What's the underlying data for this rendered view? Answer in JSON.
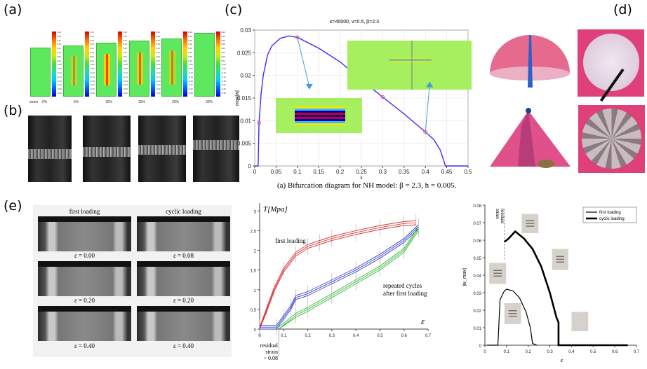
{
  "panels": {
    "a": {
      "label": "(a)",
      "strain_label": "strain",
      "strains": [
        "0%",
        "5%",
        "10%",
        "15%",
        "20%",
        "30%"
      ],
      "colorbar_ticks": [
        "0.30",
        "0.26",
        "0.22",
        "0.18",
        "0.14",
        "0.10",
        "0.06",
        "0.02",
        "-0.02",
        "-0.06",
        "-0.10",
        "-0.14",
        "-0.18",
        "-0.22",
        "-0.26",
        "-0.30"
      ]
    },
    "b": {
      "label": "(b)"
    },
    "c": {
      "label": "(c)",
      "title": "κ=40000, ν=0.5, β=2.3",
      "ylabel": "max|w|",
      "xlabel": "ε",
      "caption": "(a) Bifurcation diagram for NH model: β = 2.3, h = 0.005.",
      "curve_color": "#3a2bff",
      "marker_color": "#ff6060",
      "arrow_color": "#4a9ad8"
    },
    "d": {
      "label": "(d)"
    },
    "e": {
      "label": "(e)",
      "photo_grid": {
        "col_headers": [
          "first loading",
          "cyclic loading"
        ],
        "rows": [
          [
            "ε = 0.00",
            "ε = 0.08"
          ],
          [
            "ε = 0.20",
            "ε = 0.20"
          ],
          [
            "ε = 0.40",
            "ε = 0.40"
          ]
        ]
      },
      "stress_plot": {
        "ylabel": "T[Mpa]",
        "xlabel": "ε",
        "annotations": [
          "first loading",
          "repeated cycles",
          "after first loading"
        ],
        "residual_note": [
          "residual",
          "strain",
          "~ 0.08"
        ]
      },
      "amplitude_plot": {
        "ylabel": "|w_max|",
        "xlabel": "ε",
        "residual_note": [
          "residual",
          "strain"
        ]
      }
    }
  },
  "chart_data": [
    {
      "type": "line",
      "title": "κ=40000, ν=0.5, β=2.3",
      "xlabel": "ε",
      "ylabel": "max|w|",
      "xlim": [
        0,
        0.5
      ],
      "ylim": [
        0,
        0.03
      ],
      "xticks": [
        "0",
        "0.05",
        "0.1",
        "0.15",
        "0.2",
        "0.25",
        "0.3",
        "0.35",
        "0.4",
        "0.45",
        "0.5"
      ],
      "yticks": [
        "0",
        "0.005",
        "0.01",
        "0.015",
        "0.02",
        "0.025",
        "0.03"
      ],
      "grid": true,
      "series": [
        {
          "x": [
            0,
            0.008,
            0.01,
            0.015,
            0.02,
            0.03,
            0.04,
            0.06,
            0.08,
            0.1,
            0.15,
            0.2,
            0.25,
            0.3,
            0.35,
            0.4,
            0.42,
            0.435,
            0.447,
            0.5
          ],
          "y": [
            0,
            0,
            0.0095,
            0.016,
            0.02,
            0.0245,
            0.0265,
            0.0282,
            0.0287,
            0.0284,
            0.026,
            0.023,
            0.019,
            0.0152,
            0.0115,
            0.0075,
            0.0058,
            0.0035,
            0,
            0
          ]
        }
      ],
      "markers": {
        "x": [
          0.01,
          0.1,
          0.3,
          0.4
        ],
        "y": [
          0.0095,
          0.0284,
          0.0152,
          0.0075
        ]
      }
    },
    {
      "type": "line",
      "xlabel": "ε",
      "ylabel": "T[Mpa]",
      "xlim": [
        0,
        0.7
      ],
      "ylim": [
        0,
        3.2
      ],
      "xticks": [
        "0",
        "0.1",
        "0.2",
        "0.3",
        "0.4",
        "0.5",
        "0.6",
        "0.7"
      ],
      "yticks": [
        "0",
        "0.5",
        "1",
        "1.5",
        "2",
        "2.5",
        "3"
      ],
      "series": [
        {
          "color": "#d42020",
          "x": [
            0,
            0.03,
            0.06,
            0.1,
            0.15,
            0.2,
            0.25,
            0.3,
            0.4,
            0.5,
            0.6,
            0.65
          ],
          "y": [
            0,
            0.5,
            1.0,
            1.5,
            1.9,
            2.1,
            2.2,
            2.3,
            2.45,
            2.58,
            2.68,
            2.7
          ]
        },
        {
          "color": "#1f2ad0",
          "x": [
            0,
            0.07,
            0.1,
            0.13,
            0.15,
            0.2,
            0.3,
            0.4,
            0.5,
            0.6,
            0.66
          ],
          "y": [
            0.05,
            0.05,
            0.3,
            0.55,
            0.8,
            0.9,
            1.2,
            1.5,
            1.85,
            2.25,
            2.6
          ]
        },
        {
          "color": "#20b020",
          "x": [
            0.08,
            0.15,
            0.2,
            0.3,
            0.4,
            0.5,
            0.6,
            0.66
          ],
          "y": [
            0,
            0.35,
            0.5,
            0.85,
            1.2,
            1.55,
            2.0,
            2.55
          ]
        }
      ]
    },
    {
      "type": "line",
      "xlabel": "ε",
      "ylabel": "|w_max|",
      "xlim": [
        0,
        0.7
      ],
      "ylim": [
        0,
        0.08
      ],
      "xticks": [
        "0",
        "0.1",
        "0.2",
        "0.3",
        "0.4",
        "0.5",
        "0.6",
        "0.7"
      ],
      "yticks": [
        "0",
        "0.01",
        "0.02",
        "0.03",
        "0.04",
        "0.05",
        "0.06",
        "0.07",
        "0.08"
      ],
      "legend": "top-right",
      "series": [
        {
          "name": "first loading",
          "x": [
            0.01,
            0.06,
            0.07,
            0.09,
            0.1,
            0.13,
            0.16,
            0.19,
            0.21,
            0.22,
            0.24
          ],
          "y": [
            0,
            0,
            0.026,
            0.031,
            0.032,
            0.031,
            0.027,
            0.019,
            0.01,
            0.001,
            0
          ]
        },
        {
          "name": "cyclic loading",
          "x": [
            0.09,
            0.11,
            0.14,
            0.18,
            0.22,
            0.26,
            0.3,
            0.33,
            0.34,
            0.34,
            0.66
          ],
          "y": [
            0.059,
            0.061,
            0.065,
            0.061,
            0.055,
            0.045,
            0.03,
            0.016,
            0.013,
            0,
            0
          ]
        }
      ],
      "residual_strain_line": 0.09
    }
  ]
}
